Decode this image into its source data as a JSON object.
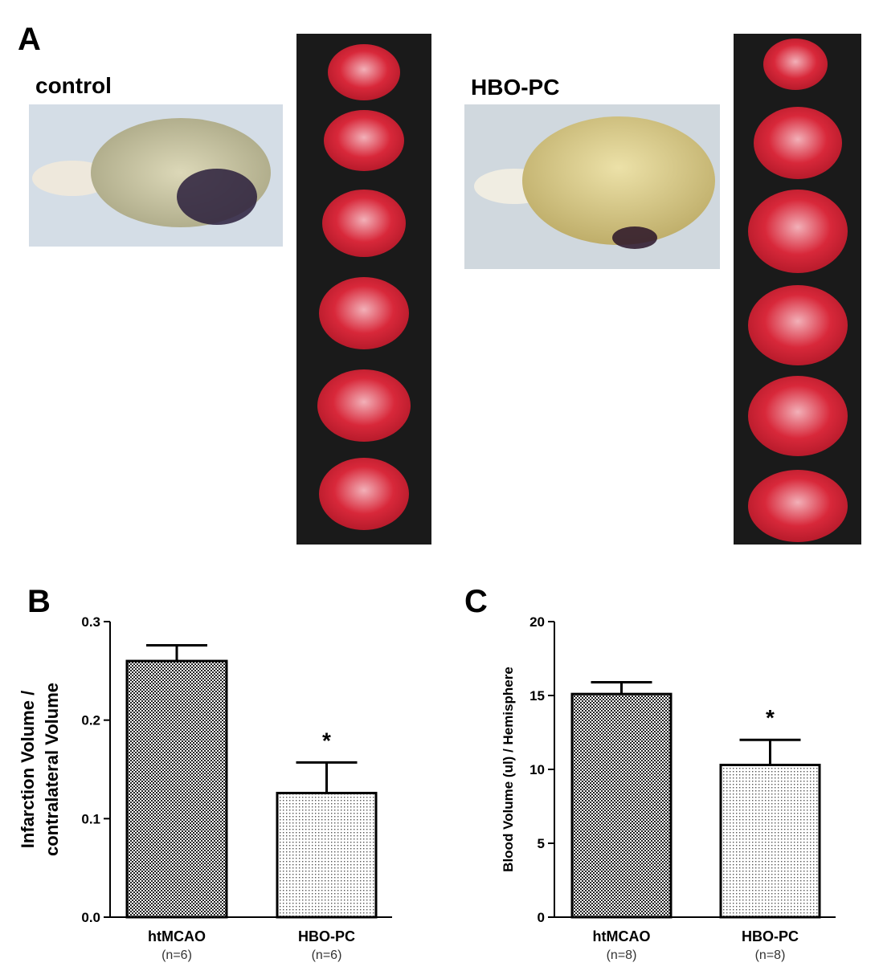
{
  "panel_a": {
    "label": "A",
    "groups": [
      "control",
      "HBO-PC"
    ]
  },
  "chart_data": [
    {
      "type": "bar",
      "panel_label": "B",
      "ylabel": [
        "Infarction Volume /",
        "contralateral Volume"
      ],
      "categories": [
        "htMCAO",
        "HBO-PC"
      ],
      "category_notes": [
        "(n=6)",
        "(n=6)"
      ],
      "values": [
        0.26,
        0.126
      ],
      "errors": [
        0.016,
        0.031
      ],
      "ylim": [
        0,
        0.3
      ],
      "yticks": [
        {
          "value": 0,
          "label": "0.0"
        },
        0.1,
        0.2,
        0.3
      ],
      "annotations": [
        {
          "text": "*",
          "category": "HBO-PC"
        }
      ]
    },
    {
      "type": "bar",
      "panel_label": "C",
      "ylabel": [
        "Blood Volume (ul) / Hemisphere"
      ],
      "categories": [
        "htMCAO",
        "HBO-PC"
      ],
      "category_notes": [
        "(n=8)",
        "(n=8)"
      ],
      "values": [
        15.1,
        10.3
      ],
      "errors": [
        0.8,
        1.7
      ],
      "ylim": [
        0,
        20
      ],
      "yticks": [
        0,
        5,
        10,
        15,
        20
      ],
      "annotations": [
        {
          "text": "*",
          "category": "HBO-PC"
        }
      ]
    }
  ]
}
